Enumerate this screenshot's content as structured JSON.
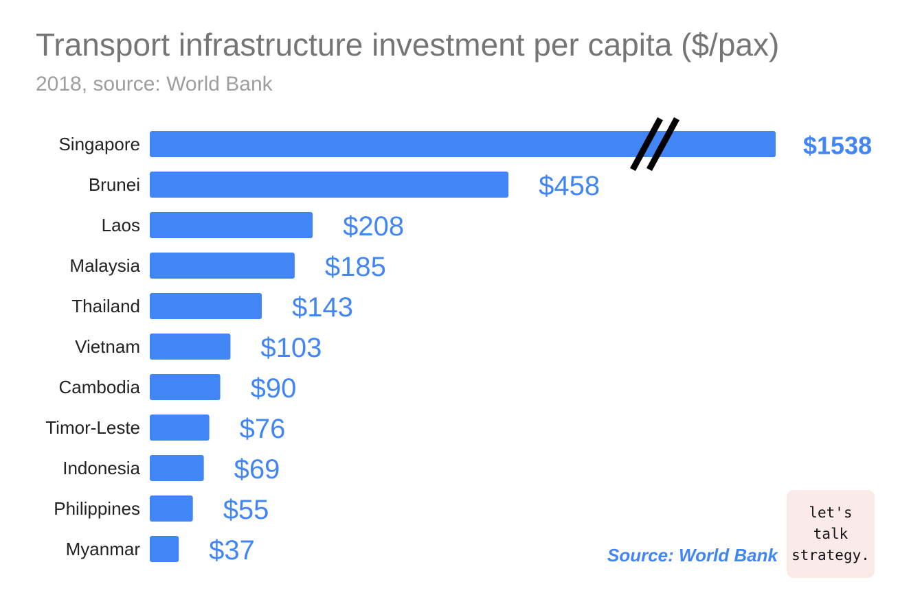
{
  "title": "Transport infrastructure investment per capita ($/pax)",
  "subtitle": "2018, source: World Bank",
  "source_note": "Source: World Bank",
  "logo_text": "let's\ntalk\nstrategy.",
  "colors": {
    "bar": "#4285f4",
    "break_mark": "#000000"
  },
  "chart_data": {
    "type": "bar",
    "orientation": "horizontal",
    "axis_break": true,
    "categories": [
      "Singapore",
      "Brunei",
      "Laos",
      "Malaysia",
      "Thailand",
      "Vietnam",
      "Cambodia",
      "Timor-Leste",
      "Indonesia",
      "Philippines",
      "Myanmar"
    ],
    "values": [
      1538,
      458,
      208,
      185,
      143,
      103,
      90,
      76,
      69,
      55,
      37
    ],
    "value_labels": [
      "$1538",
      "$458",
      "$208",
      "$185",
      "$143",
      "$103",
      "$90",
      "$76",
      "$69",
      "$55",
      "$37"
    ]
  }
}
